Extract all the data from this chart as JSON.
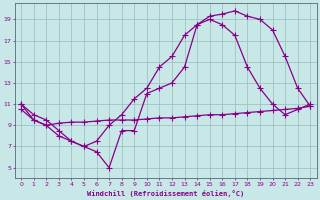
{
  "xlabel": "Windchill (Refroidissement éolien,°C)",
  "bg_color": "#c8e8e8",
  "line_color": "#880088",
  "grid_color": "#99bbbb",
  "xlim": [
    -0.5,
    23.5
  ],
  "ylim": [
    4.0,
    20.5
  ],
  "xticks": [
    0,
    1,
    2,
    3,
    4,
    5,
    6,
    7,
    8,
    9,
    10,
    11,
    12,
    13,
    14,
    15,
    16,
    17,
    18,
    19,
    20,
    21,
    22,
    23
  ],
  "yticks": [
    5,
    7,
    9,
    11,
    13,
    15,
    17,
    19
  ],
  "line1_x": [
    0,
    1,
    2,
    3,
    4,
    5,
    6,
    7,
    8,
    9,
    10,
    11,
    12,
    13,
    14,
    15,
    16,
    17,
    18,
    19,
    20,
    21,
    22,
    23
  ],
  "line1_y": [
    11.0,
    10.0,
    9.5,
    8.5,
    7.5,
    7.0,
    6.5,
    5.0,
    8.5,
    8.5,
    12.0,
    12.5,
    13.0,
    14.5,
    18.5,
    19.3,
    19.5,
    19.8,
    19.3,
    19.0,
    18.0,
    15.5,
    12.5,
    10.8
  ],
  "line2_x": [
    0,
    1,
    2,
    3,
    4,
    5,
    6,
    7,
    8,
    9,
    10,
    11,
    12,
    13,
    14,
    15,
    16,
    17,
    18,
    19,
    20,
    21,
    22,
    23
  ],
  "line2_y": [
    11.0,
    9.5,
    9.0,
    8.0,
    7.5,
    7.0,
    7.5,
    9.0,
    10.0,
    11.5,
    12.5,
    14.5,
    15.5,
    17.5,
    18.5,
    19.0,
    18.5,
    17.5,
    14.5,
    12.5,
    11.0,
    10.0,
    10.5,
    11.0
  ],
  "line3_x": [
    0,
    1,
    2,
    3,
    4,
    5,
    6,
    7,
    8,
    9,
    10,
    11,
    12,
    13,
    14,
    15,
    16,
    17,
    18,
    19,
    20,
    21,
    22,
    23
  ],
  "line3_y": [
    10.5,
    9.5,
    9.0,
    9.2,
    9.3,
    9.3,
    9.4,
    9.5,
    9.5,
    9.5,
    9.6,
    9.7,
    9.7,
    9.8,
    9.9,
    10.0,
    10.0,
    10.1,
    10.2,
    10.3,
    10.4,
    10.5,
    10.6,
    10.8
  ]
}
